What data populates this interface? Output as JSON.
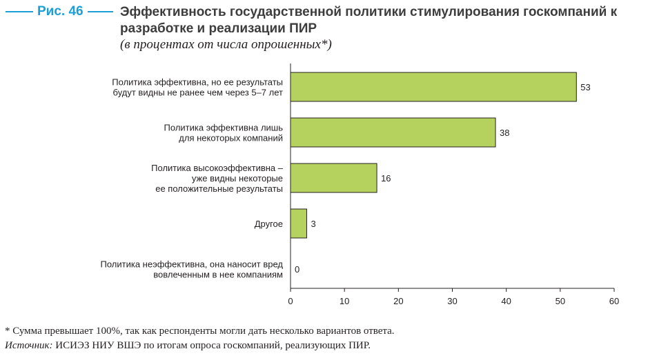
{
  "figure": {
    "label": "Рис. 46",
    "title": "Эффективность государственной политики стимулирования госкомпаний к разработке и реализации ПИР",
    "subtitle": "(в процентах от числа опрошенных*)"
  },
  "chart_data": {
    "type": "bar",
    "orientation": "horizontal",
    "categories": [
      [
        "Политика эффективна, но ее результаты",
        "будут видны не ранее чем через 5–7 лет"
      ],
      [
        "Политика эффективна лишь",
        "для некоторых компаний"
      ],
      [
        "Политика высокоэффективна –",
        "уже видны некоторые",
        "ее положительные результаты"
      ],
      [
        "Другое"
      ],
      [
        "Политика неэффективна, она наносит вред",
        "вовлеченным в нее компаниям"
      ]
    ],
    "values": [
      53,
      38,
      16,
      3,
      0
    ],
    "data_labels": [
      "53",
      "38",
      "16",
      "3",
      "0"
    ],
    "xlim": [
      0,
      60
    ],
    "x_ticks": [
      "0",
      "10",
      "20",
      "30",
      "40",
      "50",
      "60"
    ],
    "bar_color": "#b5d15e",
    "bar_stroke": "#231f20",
    "grid": false
  },
  "notes": {
    "footnote": "* Сумма превышает 100%, так как респонденты могли дать несколько вариантов ответа.",
    "source_label": "Источник:",
    "source_text": " ИСИЭЗ НИУ ВШЭ по итогам опроса госкомпаний, реализующих ПИР."
  }
}
